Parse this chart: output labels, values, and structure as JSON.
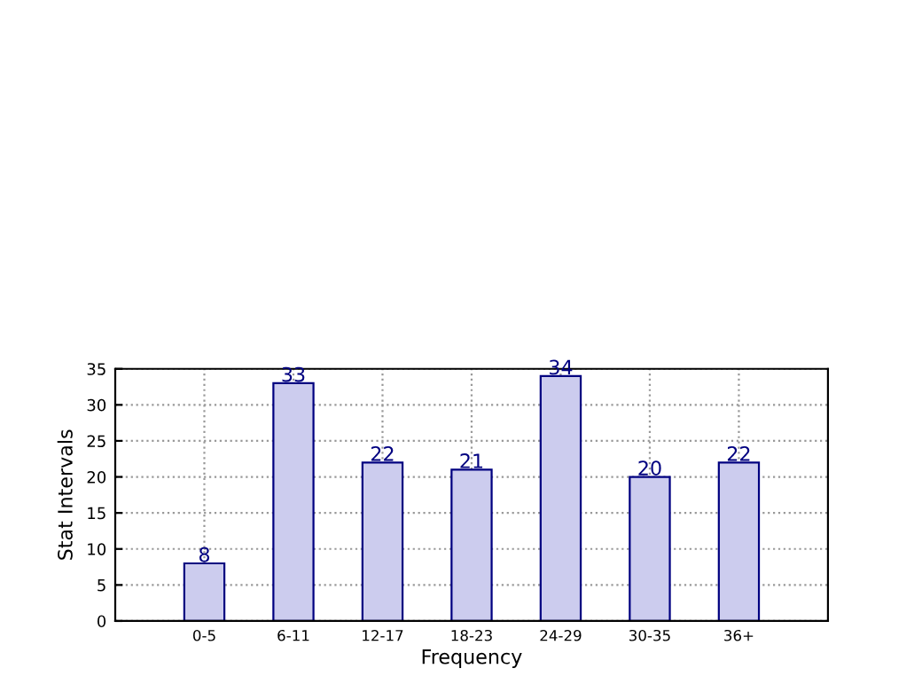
{
  "chart_data": {
    "type": "bar",
    "xlabel": "Frequency",
    "ylabel": "Stat Intervals",
    "categories": [
      "0-5",
      "6-11",
      "12-17",
      "18-23",
      "24-29",
      "30-35",
      "36+"
    ],
    "values": [
      8,
      33,
      22,
      21,
      34,
      20,
      22
    ],
    "color": "#ccccee",
    "ylim": [
      0,
      35
    ],
    "yticks": [
      0,
      5,
      10,
      15,
      20,
      25,
      30,
      35
    ],
    "grid": true,
    "data_labels": true,
    "line_style": "dotted"
  }
}
